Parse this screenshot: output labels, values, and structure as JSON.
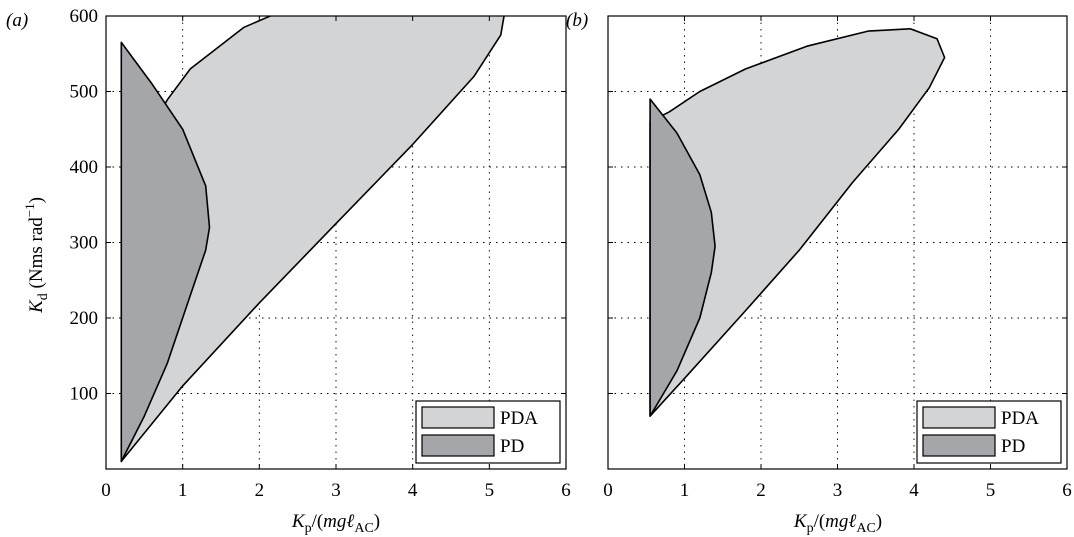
{
  "figure": {
    "xlabel_parts": {
      "var": "K",
      "sub": "p",
      "mid": "/(",
      "m": "m",
      "g": "g",
      "ell": "ℓ",
      "sub2": "AC",
      "close": ")"
    },
    "ylabel_parts": {
      "var": "K",
      "sub": "d",
      "unit_pre": " (Nms rad",
      "sup": "−1",
      "unit_post": ")"
    }
  },
  "colors": {
    "PDA": "#d2d4d6",
    "PD": "#a5a6a9",
    "frame": "#000000",
    "background": "#ffffff"
  },
  "chart_data": [
    {
      "type": "area",
      "panel_label": "(a)",
      "xlim": [
        0,
        6
      ],
      "ylim": [
        0,
        600
      ],
      "xticks": [
        0,
        1,
        2,
        3,
        4,
        5,
        6
      ],
      "yticks": [
        100,
        200,
        300,
        400,
        500,
        600
      ],
      "grid": true,
      "legend": {
        "position": "bottom-right",
        "entries": [
          "PDA",
          "PD"
        ]
      },
      "series": [
        {
          "name": "PDA",
          "points": [
            [
              0.2,
              10
            ],
            [
              1.0,
              110
            ],
            [
              2.0,
              220
            ],
            [
              3.0,
              325
            ],
            [
              4.0,
              430
            ],
            [
              4.8,
              520
            ],
            [
              5.15,
              575
            ],
            [
              5.2,
              605
            ],
            [
              5.0,
              640
            ],
            [
              4.6,
              652
            ],
            [
              4.2,
              653
            ],
            [
              3.5,
              645
            ],
            [
              2.6,
              620
            ],
            [
              1.8,
              585
            ],
            [
              1.1,
              530
            ],
            [
              0.8,
              489
            ],
            [
              0.2,
              380
            ]
          ]
        },
        {
          "name": "PD",
          "points": [
            [
              0.2,
              10
            ],
            [
              0.5,
              70
            ],
            [
              0.8,
              140
            ],
            [
              1.1,
              230
            ],
            [
              1.3,
              290
            ],
            [
              1.35,
              320
            ],
            [
              1.3,
              375
            ],
            [
              1.0,
              450
            ],
            [
              0.6,
              510
            ],
            [
              0.2,
              565
            ]
          ]
        }
      ]
    },
    {
      "type": "area",
      "panel_label": "(b)",
      "xlim": [
        0,
        6
      ],
      "ylim": [
        0,
        600
      ],
      "xticks": [
        0,
        1,
        2,
        3,
        4,
        5,
        6
      ],
      "yticks": [
        100,
        200,
        300,
        400,
        500,
        600
      ],
      "grid": true,
      "legend": {
        "position": "bottom-right",
        "entries": [
          "PDA",
          "PD"
        ]
      },
      "series": [
        {
          "name": "PDA",
          "points": [
            [
              0.55,
              70
            ],
            [
              1.0,
              120
            ],
            [
              1.8,
              210
            ],
            [
              2.5,
              290
            ],
            [
              3.2,
              380
            ],
            [
              3.8,
              450
            ],
            [
              4.2,
              505
            ],
            [
              4.4,
              545
            ],
            [
              4.3,
              570
            ],
            [
              3.95,
              583
            ],
            [
              3.4,
              580
            ],
            [
              2.6,
              560
            ],
            [
              1.8,
              530
            ],
            [
              1.2,
              500
            ],
            [
              0.8,
              473
            ],
            [
              0.55,
              460
            ]
          ]
        },
        {
          "name": "PD",
          "points": [
            [
              0.55,
              70
            ],
            [
              0.9,
              130
            ],
            [
              1.2,
              200
            ],
            [
              1.35,
              260
            ],
            [
              1.4,
              295
            ],
            [
              1.35,
              340
            ],
            [
              1.2,
              390
            ],
            [
              0.9,
              445
            ],
            [
              0.55,
              490
            ]
          ]
        }
      ]
    }
  ]
}
